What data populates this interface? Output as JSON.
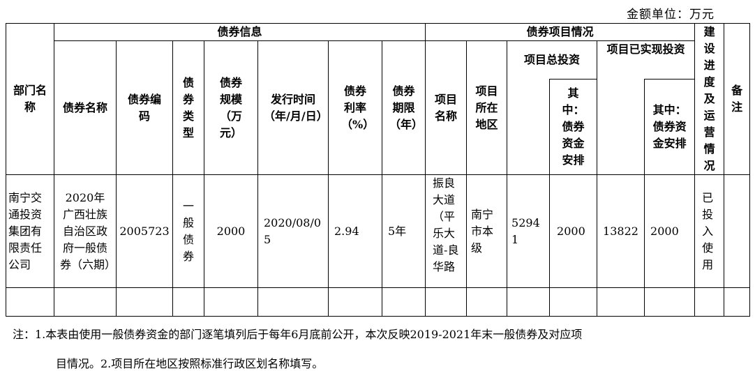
{
  "unit_label": "金额单位：万元",
  "headers": {
    "dept_name": "部门名称",
    "bond_info": "债券信息",
    "bond_project": "债券项目情况",
    "progress": "建设进度及运营情况",
    "remarks": "备注",
    "bond_name": "债券名称",
    "bond_code": "债券编码",
    "bond_type": "债券类型",
    "bond_scale": "债券规模（万元）",
    "issue_date": "发行时间（年/月/日）",
    "bond_rate": "债券利率（%）",
    "bond_term": "债券期限（年）",
    "project_name": "项目名称",
    "project_region": "项目所在地区",
    "total_invest": "项目总投资",
    "total_bond_part": "其中：债券资金安排",
    "realized_invest": "项目已实现投资",
    "realized_bond_part": "其中：债券资金安排"
  },
  "rows": [
    {
      "dept_name": "南宁交通投资集团有限责任公司",
      "bond_name": "2020年广西壮族自治区政府一般债券（六期）",
      "bond_code": "2005723",
      "bond_type": "一般债券",
      "bond_scale": "2000",
      "issue_date": "2020/08/05",
      "bond_rate": "2.94",
      "bond_term": "5年",
      "project_name": "振良大道（平乐大道-良华路",
      "project_region": "南宁市本级",
      "total_invest": "52941",
      "total_bond_part": "2000",
      "realized_invest": "13822",
      "realized_bond_part": "2000",
      "progress": "已投入使用",
      "remarks": ""
    }
  ],
  "notes": {
    "line1": "注：1.本表由使用一般债券资金的部门逐笔填列后于每年6月底前公开，本次反映2019-2021年末一般债券及对应项",
    "line2": "目情况。2.项目所在地区按照标准行政区划名称填写。"
  }
}
